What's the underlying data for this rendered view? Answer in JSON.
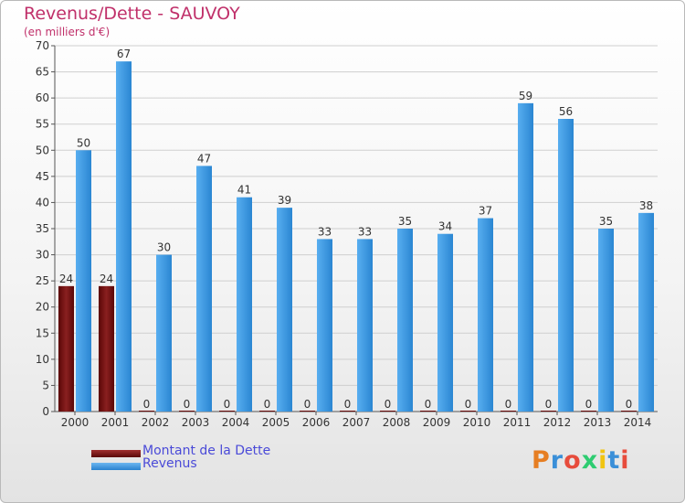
{
  "title": "Revenus/Dette - SAUVOY",
  "subtitle": "(en milliers d'€)",
  "colors": {
    "title": "#c0306a",
    "debt": "#6a0a0a",
    "revenue": "#3f9be6",
    "axis_text": "#333333",
    "grid": "#cfcfcf",
    "legend_text": "#4a4ad8"
  },
  "legend": [
    {
      "label": "Montant de la Dette",
      "color": "#6a0a0a"
    },
    {
      "label": "Revenus",
      "color": "#3f9be6"
    }
  ],
  "logo": {
    "text": "Proxiti",
    "colors": [
      "#e67e22",
      "#3a8fd8",
      "#e74c3c",
      "#2ecc71",
      "#f1c40f",
      "#3a8fd8",
      "#e74c3c"
    ]
  },
  "chart_data": {
    "type": "bar",
    "categories": [
      "2000",
      "2001",
      "2002",
      "2003",
      "2004",
      "2005",
      "2006",
      "2007",
      "2008",
      "2009",
      "2010",
      "2011",
      "2012",
      "2013",
      "2014"
    ],
    "series": [
      {
        "name": "Montant de la Dette",
        "values": [
          24,
          24,
          0,
          0,
          0,
          0,
          0,
          0,
          0,
          0,
          0,
          0,
          0,
          0,
          0
        ]
      },
      {
        "name": "Revenus",
        "values": [
          50,
          67,
          30,
          47,
          41,
          39,
          33,
          33,
          35,
          34,
          37,
          59,
          56,
          35,
          38
        ]
      }
    ],
    "ylim": [
      0,
      70
    ],
    "yticks": [
      0,
      5,
      10,
      15,
      20,
      25,
      30,
      35,
      40,
      45,
      50,
      55,
      60,
      65,
      70
    ],
    "grid": true,
    "legend_position": "bottom-left"
  }
}
